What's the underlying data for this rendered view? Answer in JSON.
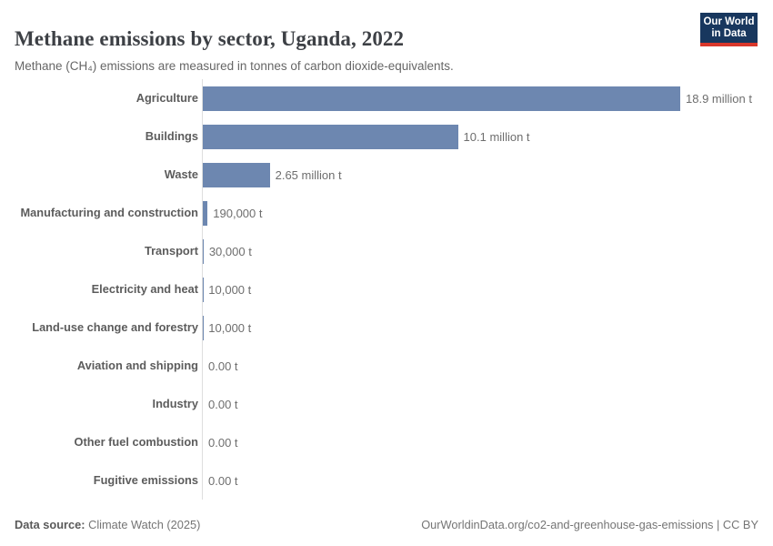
{
  "header": {
    "title": "Methane emissions by sector, Uganda, 2022",
    "subtitle": "Methane (CH₄) emissions are measured in tonnes of carbon dioxide-equivalents.",
    "logo": {
      "line1": "Our World",
      "line2": "in Data"
    }
  },
  "chart_data": {
    "type": "bar",
    "orientation": "horizontal",
    "title": "Methane emissions by sector, Uganda, 2022",
    "subtitle": "Methane (CH₄) emissions are measured in tonnes of carbon dioxide-equivalents.",
    "unit": "tonnes of carbon dioxide-equivalents",
    "categories": [
      "Agriculture",
      "Buildings",
      "Waste",
      "Manufacturing and construction",
      "Transport",
      "Electricity and heat",
      "Land-use change and forestry",
      "Aviation and shipping",
      "Industry",
      "Other fuel combustion",
      "Fugitive emissions"
    ],
    "values": [
      18900000,
      10100000,
      2650000,
      190000,
      30000,
      10000,
      10000,
      0,
      0,
      0,
      0
    ],
    "value_labels": [
      "18.9 million t",
      "10.1 million t",
      "2.65 million t",
      "190,000 t",
      "30,000 t",
      "10,000 t",
      "10,000 t",
      "0.00 t",
      "0.00 t",
      "0.00 t",
      "0.00 t"
    ],
    "xlim": [
      0,
      18900000
    ],
    "grid": false,
    "legend": "none",
    "bar_color": "#6d87b0",
    "axis_color": "#dedede"
  },
  "footer": {
    "source_label": "Data source:",
    "source_value": "Climate Watch (2025)",
    "rights": "OurWorldinData.org/co2-and-greenhouse-gas-emissions | CC BY"
  }
}
